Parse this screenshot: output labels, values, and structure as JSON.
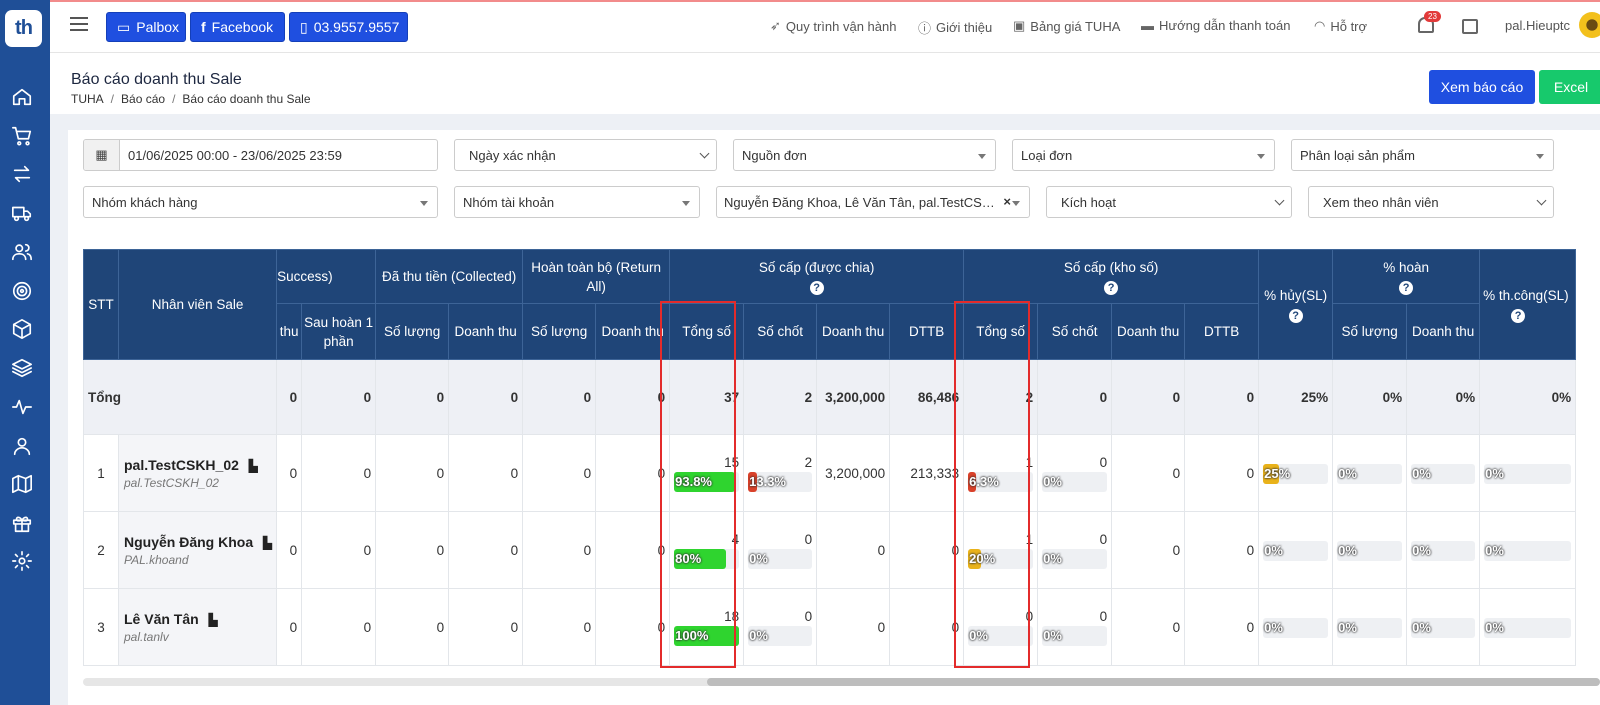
{
  "nav": {
    "logo": "th",
    "sidebar_icons": [
      "home-icon",
      "cart-icon",
      "exchange-icon",
      "truck-icon",
      "users-icon",
      "target-icon",
      "box-icon",
      "layers-icon",
      "activity-icon",
      "user-icon",
      "map-icon",
      "gift-icon",
      "settings-icon"
    ]
  },
  "topbar": {
    "btn_palbox": "Palbox",
    "btn_facebook": "Facebook",
    "btn_phone": "03.9557.9557",
    "link_process": "Quy trình vận hành",
    "link_intro": "Giới thiệu",
    "link_pricing": "Bảng giá TUHA",
    "link_payment": "Hướng dẫn thanh toán",
    "link_support": "Hỗ trợ",
    "notif_count": "23",
    "username": "pal.Hieuptc"
  },
  "header": {
    "title": "Báo cáo doanh thu Sale",
    "breadcrumb": [
      "TUHA",
      "Báo cáo",
      "Báo cáo doanh thu Sale"
    ],
    "btn_report": "Xem báo cáo",
    "btn_excel": "Excel"
  },
  "filters": {
    "date_range": "01/06/2025 00:00 - 23/06/2025 23:59",
    "date_type": "Ngày xác nhận",
    "source": "Nguồn đơn",
    "order_type": "Loại đơn",
    "product_type": "Phân loại sản phẩm",
    "customer_group": "Nhóm khách hàng",
    "account_group": "Nhóm tài khoản",
    "staff_selected": "Nguyễn Đăng Khoa, Lê Văn Tân, pal.TestCSKH...",
    "status": "Kích hoạt",
    "view_by": "Xem theo nhân viên"
  },
  "table": {
    "h_stt": "STT",
    "h_sale": "Nhân viên Sale",
    "h_success": "Success)",
    "h_collected": "Đã thu tiền (Collected)",
    "h_return_all": "Hoàn toàn bộ (Return All)",
    "h_assigned": "Số cấp (được chia)",
    "h_store": "Số cấp (kho số)",
    "h_cancel": "% hủy(SL)",
    "h_return_pct": "% hoàn",
    "h_success_pct": "% th.công(SL)",
    "s_thu": "thu",
    "s_after_partial": "Sau hoàn 1 phần",
    "s_qty": "Số lượng",
    "s_revenue": "Doanh thu",
    "s_total": "Tổng số",
    "s_closed": "Số chốt",
    "s_avg": "DTTB",
    "total_label": "Tổng",
    "totals": {
      "thu": "0",
      "after_partial": "0",
      "col_qty": "0",
      "col_rev": "0",
      "ret_qty": "0",
      "ret_rev": "0",
      "a_total": "37",
      "a_closed": "2",
      "a_rev": "3,200,000",
      "a_avg": "86,486",
      "s_total": "2",
      "s_closed": "0",
      "s_rev": "0",
      "s_avg": "0",
      "cancel": "25%",
      "ret_qty_pct": "0%",
      "ret_rev_pct": "0%",
      "success_pct": "0%"
    },
    "rows": [
      {
        "stt": "1",
        "name": "pal.TestCSKH_02",
        "user": "pal.TestCSKH_02",
        "thu": "0",
        "after_partial": "0",
        "col_qty": "0",
        "col_rev": "0",
        "ret_qty": "0",
        "ret_rev": "0",
        "a_total": "15",
        "a_total_pct": "93.8%",
        "a_total_frac": 0.938,
        "a_closed": "2",
        "a_closed_pct": "13.3%",
        "a_closed_frac": 0.133,
        "a_rev": "3,200,000",
        "a_avg": "213,333",
        "s_total": "1",
        "s_total_pct": "6.3%",
        "s_total_frac": 0.063,
        "s_closed": "0",
        "s_closed_pct": "0%",
        "s_closed_frac": 0,
        "s_rev": "0",
        "s_avg": "0",
        "cancel": "25%",
        "cancel_frac": 0.25,
        "ret_qty_pct": "0%",
        "ret_rev_pct": "0%",
        "success_pct": "0%"
      },
      {
        "stt": "2",
        "name": "Nguyễn Đăng Khoa",
        "user": "PAL.khoand",
        "thu": "0",
        "after_partial": "0",
        "col_qty": "0",
        "col_rev": "0",
        "ret_qty": "0",
        "ret_rev": "0",
        "a_total": "4",
        "a_total_pct": "80%",
        "a_total_frac": 0.8,
        "a_closed": "0",
        "a_closed_pct": "0%",
        "a_closed_frac": 0,
        "a_rev": "0",
        "a_avg": "0",
        "s_total": "1",
        "s_total_pct": "20%",
        "s_total_frac": 0.2,
        "s_closed": "0",
        "s_closed_pct": "0%",
        "s_closed_frac": 0,
        "s_rev": "0",
        "s_avg": "0",
        "cancel": "0%",
        "cancel_frac": 0,
        "ret_qty_pct": "0%",
        "ret_rev_pct": "0%",
        "success_pct": "0%"
      },
      {
        "stt": "3",
        "name": "Lê Văn Tân",
        "user": "pal.tanlv",
        "thu": "0",
        "after_partial": "0",
        "col_qty": "0",
        "col_rev": "0",
        "ret_qty": "0",
        "ret_rev": "0",
        "a_total": "18",
        "a_total_pct": "100%",
        "a_total_frac": 1,
        "a_closed": "0",
        "a_closed_pct": "0%",
        "a_closed_frac": 0,
        "a_rev": "0",
        "a_avg": "0",
        "s_total": "0",
        "s_total_pct": "0%",
        "s_total_frac": 0,
        "s_closed": "0",
        "s_closed_pct": "0%",
        "s_closed_frac": 0,
        "s_rev": "0",
        "s_avg": "0",
        "cancel": "0%",
        "cancel_frac": 0,
        "ret_qty_pct": "0%",
        "ret_rev_pct": "0%",
        "success_pct": "0%"
      }
    ]
  },
  "colors": {
    "primary": "#1f4fe0",
    "header_bg": "#1f4578",
    "sidebar_bg": "#1f4f97",
    "excel": "#17c96c",
    "bar_green": "#2fd42f",
    "bar_red": "#d9412a",
    "bar_orange": "#e9b21a"
  }
}
